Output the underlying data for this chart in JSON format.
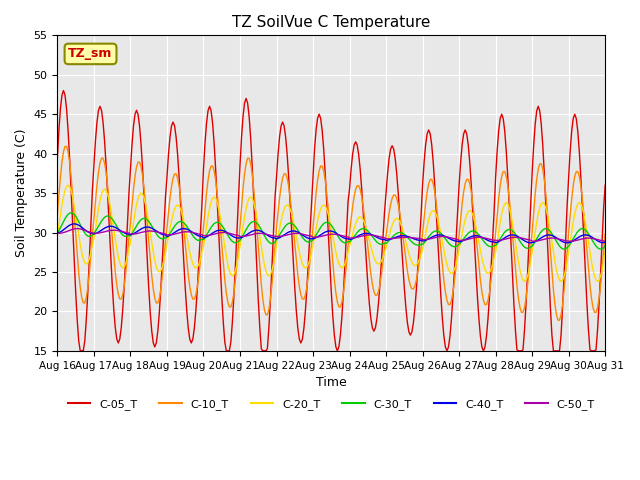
{
  "title": "TZ SoilVue C Temperature",
  "xlabel": "Time",
  "ylabel": "Soil Temperature (C)",
  "ylim": [
    15,
    55
  ],
  "xlim": [
    0,
    360
  ],
  "yticks": [
    15,
    20,
    25,
    30,
    35,
    40,
    45,
    50,
    55
  ],
  "xtick_labels": [
    "Aug 16",
    "Aug 17",
    "Aug 18",
    "Aug 19",
    "Aug 20",
    "Aug 21",
    "Aug 22",
    "Aug 23",
    "Aug 24",
    "Aug 25",
    "Aug 26",
    "Aug 27",
    "Aug 28",
    "Aug 29",
    "Aug 30",
    "Aug 31"
  ],
  "xtick_positions": [
    0,
    24,
    48,
    72,
    96,
    120,
    144,
    168,
    192,
    216,
    240,
    264,
    288,
    312,
    336,
    360
  ],
  "bg_color": "#e8e8e8",
  "fig_color": "#ffffff",
  "series": [
    {
      "label": "C-05_T",
      "color": "#dd0000"
    },
    {
      "label": "C-10_T",
      "color": "#ff8800"
    },
    {
      "label": "C-20_T",
      "color": "#ffdd00"
    },
    {
      "label": "C-30_T",
      "color": "#00cc00"
    },
    {
      "label": "C-40_T",
      "color": "#0000ee"
    },
    {
      "label": "C-50_T",
      "color": "#aa00aa"
    }
  ],
  "annotation_text": "TZ_sm",
  "annotation_bg": "#ffffaa",
  "annotation_fg": "#cc0000",
  "amps_05": [
    17,
    15,
    15,
    14,
    16,
    17,
    14,
    15,
    12,
    12,
    14,
    14,
    16,
    17,
    16,
    14
  ],
  "means_05": [
    31,
    31,
    30.5,
    30,
    30,
    30,
    30,
    30,
    29.5,
    29,
    29,
    29,
    29,
    29,
    29,
    29
  ],
  "amps_10": [
    10,
    9,
    9,
    8,
    9,
    10,
    8,
    9,
    7,
    6,
    8,
    8,
    9,
    10,
    9,
    8
  ],
  "means_10": [
    31,
    30.5,
    30,
    29.5,
    29.5,
    29.5,
    29.5,
    29.5,
    29,
    28.8,
    28.8,
    28.8,
    28.8,
    28.8,
    28.8,
    28.8
  ],
  "amps_20": [
    5,
    5,
    5,
    4,
    5,
    5,
    4,
    4,
    3,
    3,
    4,
    4,
    5,
    5,
    5,
    4
  ],
  "means_20": [
    31,
    30.5,
    30,
    29.5,
    29.5,
    29.5,
    29.5,
    29.5,
    29,
    28.8,
    28.8,
    28.8,
    28.8,
    28.8,
    28.8,
    28.8
  ],
  "amps_30": [
    1.5,
    1.3,
    1.3,
    1.2,
    1.3,
    1.4,
    1.2,
    1.3,
    1.0,
    0.8,
    1.0,
    1.0,
    1.2,
    1.3,
    1.3,
    1.2
  ],
  "means_30": [
    31,
    30.8,
    30.5,
    30.2,
    30,
    30,
    30,
    30,
    29.5,
    29.2,
    29.2,
    29.2,
    29.2,
    29.2,
    29.2,
    29.2
  ],
  "amps_40": [
    0.6,
    0.5,
    0.5,
    0.5,
    0.5,
    0.5,
    0.5,
    0.5,
    0.4,
    0.3,
    0.4,
    0.4,
    0.5,
    0.5,
    0.5,
    0.4
  ],
  "means_40": [
    30.5,
    30.3,
    30.2,
    30.0,
    29.8,
    29.8,
    29.7,
    29.7,
    29.5,
    29.3,
    29.3,
    29.2,
    29.2,
    29.2,
    29.2,
    29.2
  ],
  "amps_50": [
    0.3,
    0.2,
    0.2,
    0.2,
    0.2,
    0.2,
    0.2,
    0.2,
    0.2,
    0.1,
    0.2,
    0.2,
    0.2,
    0.2,
    0.2,
    0.2
  ],
  "means_50": [
    30.2,
    30.1,
    30.0,
    29.9,
    29.8,
    29.7,
    29.7,
    29.6,
    29.5,
    29.3,
    29.3,
    29.2,
    29.2,
    29.1,
    29.1,
    29.1
  ]
}
